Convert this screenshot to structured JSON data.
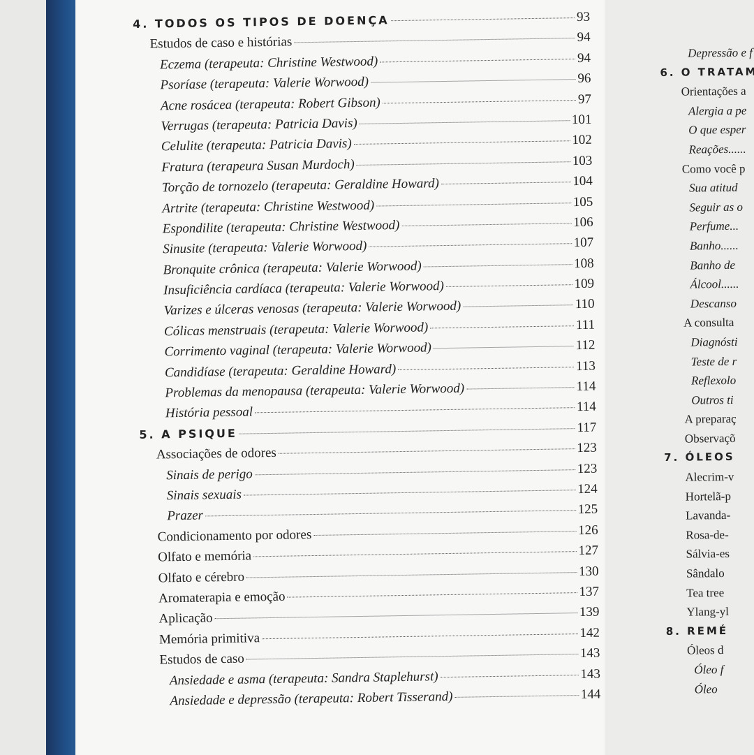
{
  "left_page": {
    "entries": [
      {
        "level": "chap",
        "title": "4. TODOS OS TIPOS DE DOENÇA",
        "page": "93"
      },
      {
        "level": "l1",
        "title": "Estudos de caso e histórias",
        "page": "94"
      },
      {
        "level": "l2",
        "title": "Eczema (terapeuta: Christine Westwood)",
        "page": "94"
      },
      {
        "level": "l2",
        "title": "Psoríase (terapeuta: Valerie Worwood)",
        "page": "96"
      },
      {
        "level": "l2",
        "title": "Acne rosácea (terapeuta: Robert Gibson)",
        "page": "97"
      },
      {
        "level": "l2",
        "title": "Verrugas (terapeuta: Patricia Davis)",
        "page": "101"
      },
      {
        "level": "l2",
        "title": "Celulite (terapeuta: Patricia Davis)",
        "page": "102"
      },
      {
        "level": "l2",
        "title": "Fratura (terapeura Susan Murdoch)",
        "page": "103"
      },
      {
        "level": "l2",
        "title": "Torção de tornozelo (terapeuta: Geraldine Howard)",
        "page": "104"
      },
      {
        "level": "l2",
        "title": "Artrite (terapeuta: Christine Westwood)",
        "page": "105"
      },
      {
        "level": "l2",
        "title": "Espondilite (terapeuta: Christine Westwood)",
        "page": "106"
      },
      {
        "level": "l2",
        "title": "Sinusite (terapeuta: Valerie Worwood)",
        "page": "107"
      },
      {
        "level": "l2",
        "title": "Bronquite crônica (terapeuta: Valerie Worwood)",
        "page": "108"
      },
      {
        "level": "l2",
        "title": "Insuficiência cardíaca (terapeuta: Valerie Worwood)",
        "page": "109"
      },
      {
        "level": "l2",
        "title": "Varizes e úlceras venosas (terapeuta: Valerie Worwood)",
        "page": "110"
      },
      {
        "level": "l2",
        "title": "Cólicas menstruais (terapeuta: Valerie Worwood)",
        "page": "111"
      },
      {
        "level": "l2",
        "title": "Corrimento vaginal (terapeuta: Valerie Worwood)",
        "page": "112"
      },
      {
        "level": "l2",
        "title": "Candidíase (terapeuta: Geraldine Howard)",
        "page": "113"
      },
      {
        "level": "l2",
        "title": "Problemas da menopausa (terapeuta: Valerie Worwood)",
        "page": "114"
      },
      {
        "level": "l2",
        "title": "História pessoal",
        "page": "114"
      },
      {
        "level": "chap",
        "title": "5. A PSIQUE",
        "page": "117"
      },
      {
        "level": "l1",
        "title": "Associações de odores",
        "page": "123"
      },
      {
        "level": "l2",
        "title": "Sinais de perigo",
        "page": "123"
      },
      {
        "level": "l2",
        "title": "Sinais sexuais",
        "page": "124"
      },
      {
        "level": "l2",
        "title": "Prazer",
        "page": "125"
      },
      {
        "level": "l1",
        "title": "Condicionamento por odores",
        "page": "126"
      },
      {
        "level": "l1",
        "title": "Olfato e memória",
        "page": "127"
      },
      {
        "level": "l1",
        "title": "Olfato e cérebro",
        "page": "130"
      },
      {
        "level": "l1",
        "title": "Aromaterapia e emoção",
        "page": "137"
      },
      {
        "level": "l1",
        "title": "Aplicação",
        "page": "139"
      },
      {
        "level": "l1",
        "title": "Memória primitiva",
        "page": "142"
      },
      {
        "level": "l1",
        "title": "Estudos de caso",
        "page": "143"
      },
      {
        "level": "l2",
        "title": "Ansiedade e asma (terapeuta: Sandra Staplehurst)",
        "page": "143"
      },
      {
        "level": "l2",
        "title": "Ansiedade e depressão (terapeuta: Robert Tisserand)",
        "page": "144"
      }
    ]
  },
  "right_page": {
    "entries": [
      {
        "level": "l2",
        "title": "Depressão e f"
      },
      {
        "level": "chap",
        "title": "6. O TRATAM"
      },
      {
        "level": "l1",
        "title": "Orientações a"
      },
      {
        "level": "l2",
        "title": "Alergia a pe"
      },
      {
        "level": "l2",
        "title": "O que esper"
      },
      {
        "level": "l2",
        "title": "Reações......"
      },
      {
        "level": "l1",
        "title": "Como você p"
      },
      {
        "level": "l2",
        "title": "Sua atitud"
      },
      {
        "level": "l2",
        "title": "Seguir as o"
      },
      {
        "level": "l2",
        "title": "Perfume..."
      },
      {
        "level": "l2",
        "title": "Banho......"
      },
      {
        "level": "l2",
        "title": "Banho de"
      },
      {
        "level": "l2",
        "title": "Álcool......"
      },
      {
        "level": "l2",
        "title": "Descanso"
      },
      {
        "level": "l1",
        "title": "A consulta"
      },
      {
        "level": "l2",
        "title": "Diagnósti"
      },
      {
        "level": "l2",
        "title": "Teste de r"
      },
      {
        "level": "l2",
        "title": "Reflexolo"
      },
      {
        "level": "l2",
        "title": "Outros ti"
      },
      {
        "level": "l1",
        "title": "A preparaç"
      },
      {
        "level": "l1",
        "title": "Observaçõ"
      },
      {
        "level": "chap",
        "title": "7. ÓLEOS"
      },
      {
        "level": "l1",
        "title": "Alecrim-v"
      },
      {
        "level": "l1",
        "title": "Hortelã-p"
      },
      {
        "level": "l1",
        "title": "Lavanda-"
      },
      {
        "level": "l1",
        "title": "Rosa-de-"
      },
      {
        "level": "l1",
        "title": "Sálvia-es"
      },
      {
        "level": "l1",
        "title": "Sândalo"
      },
      {
        "level": "l1",
        "title": "Tea tree"
      },
      {
        "level": "l1",
        "title": "Ylang-yl"
      },
      {
        "level": "chap",
        "title": "8. REMÉ"
      },
      {
        "level": "l1",
        "title": "Óleos d"
      },
      {
        "level": "l2",
        "title": "Óleo f"
      },
      {
        "level": "l2",
        "title": "Óleo"
      }
    ]
  },
  "colors": {
    "spine": "#1f4e86",
    "paper": "#f7f7f6",
    "background": "#e9e9e8"
  }
}
